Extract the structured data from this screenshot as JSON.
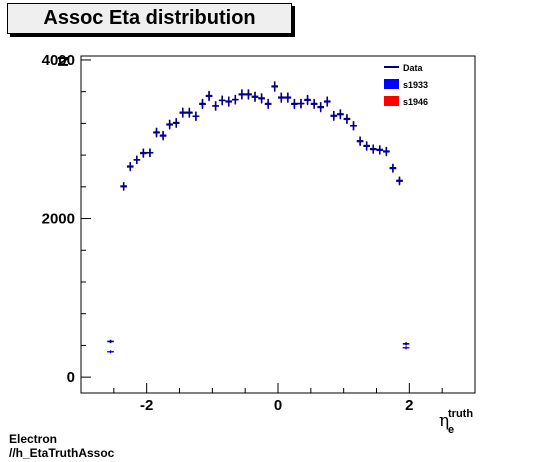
{
  "title": "Assoc Eta distribution",
  "footer": {
    "line1": "Electron",
    "line2": "//h_EtaTruthAssoc"
  },
  "colors": {
    "data": "#000080",
    "s1933": "#0000ff",
    "s1946": "#ff0000",
    "frame": "#000000"
  },
  "chart_data": {
    "type": "scatter",
    "title": "Assoc Eta distribution",
    "xlabel_main": "η",
    "xlabel_sup": "truth",
    "xlabel_sub": "e",
    "ylabel": "N",
    "xlim": [
      -3.0,
      3.0
    ],
    "ylim": [
      -200,
      4050
    ],
    "xticks": [
      -2,
      0,
      2
    ],
    "xtick_labels": [
      "-2",
      "0",
      "2"
    ],
    "yticks": [
      0,
      2000,
      4000
    ],
    "ytick_labels": [
      "0",
      "2000",
      "4000"
    ],
    "legend": {
      "position": "top-right",
      "entries": [
        {
          "name": "Data",
          "style": "line"
        },
        {
          "name": "s1933",
          "style": "box"
        },
        {
          "name": "s1946",
          "style": "box"
        }
      ]
    },
    "series": [
      {
        "name": "Data",
        "bin_width": 0.1,
        "x": [
          -2.55,
          -2.45,
          -2.35,
          -2.25,
          -2.15,
          -2.05,
          -1.95,
          -1.85,
          -1.75,
          -1.65,
          -1.55,
          -1.45,
          -1.35,
          -1.25,
          -1.15,
          -1.05,
          -0.95,
          -0.85,
          -0.75,
          -0.65,
          -0.55,
          -0.45,
          -0.35,
          -0.25,
          -0.15,
          -0.05,
          0.05,
          0.15,
          0.25,
          0.35,
          0.45,
          0.55,
          0.65,
          0.75,
          0.85,
          0.95,
          1.05,
          1.15,
          1.25,
          1.35,
          1.45,
          1.55,
          1.65,
          1.75,
          1.85,
          1.95,
          2.05,
          2.15,
          2.25,
          2.35,
          2.45,
          2.55
        ],
        "y": [
          450,
          0,
          2410,
          2660,
          2740,
          2830,
          2830,
          3090,
          3050,
          3190,
          3210,
          3340,
          3340,
          3290,
          3450,
          3550,
          3420,
          3490,
          3480,
          3500,
          3570,
          3570,
          3540,
          3520,
          3450,
          3670,
          3530,
          3530,
          3450,
          3450,
          3500,
          3450,
          3410,
          3480,
          3300,
          3320,
          3260,
          3170,
          2980,
          2920,
          2880,
          2870,
          2850,
          2640,
          2480,
          420,
          0,
          0,
          0,
          0,
          0,
          0
        ]
      },
      {
        "name": "s1933",
        "bin_width": 0.1,
        "x": [
          -2.55,
          -2.45,
          -2.35,
          -2.25,
          -2.15,
          -2.05,
          -1.95,
          -1.85,
          -1.75,
          -1.65,
          -1.55,
          -1.45,
          -1.35,
          -1.25,
          -1.15,
          -1.05,
          -0.95,
          -0.85,
          -0.75,
          -0.65,
          -0.55,
          -0.45,
          -0.35,
          -0.25,
          -0.15,
          -0.05,
          0.05,
          0.15,
          0.25,
          0.35,
          0.45,
          0.55,
          0.65,
          0.75,
          0.85,
          0.95,
          1.05,
          1.15,
          1.25,
          1.35,
          1.45,
          1.55,
          1.65,
          1.75,
          1.85,
          1.95,
          2.05,
          2.15,
          2.25,
          2.35,
          2.45,
          2.55
        ],
        "y": [
          320,
          0,
          2400,
          2650,
          2740,
          2820,
          2830,
          3080,
          3040,
          3180,
          3200,
          3330,
          3330,
          3290,
          3440,
          3540,
          3420,
          3490,
          3470,
          3500,
          3560,
          3560,
          3530,
          3510,
          3440,
          3660,
          3520,
          3520,
          3440,
          3450,
          3490,
          3440,
          3400,
          3470,
          3290,
          3310,
          3250,
          3170,
          2970,
          2910,
          2870,
          2860,
          2840,
          2630,
          2470,
          370,
          0,
          0,
          0,
          0,
          0,
          0
        ]
      },
      {
        "name": "s1946",
        "bin_width": 0.1,
        "x": [
          -2.55,
          -2.45,
          -2.35,
          -2.25,
          -2.15,
          -2.05,
          -1.95,
          -1.85,
          -1.75,
          -1.65,
          -1.55,
          -1.45,
          -1.35,
          -1.25,
          -1.15,
          -1.05,
          -0.95,
          -0.85,
          -0.75,
          -0.65,
          -0.55,
          -0.45,
          -0.35,
          -0.25,
          -0.15,
          -0.05,
          0.05,
          0.15,
          0.25,
          0.35,
          0.45,
          0.55,
          0.65,
          0.75,
          0.85,
          0.95,
          1.05,
          1.15,
          1.25,
          1.35,
          1.45,
          1.55,
          1.65,
          1.75,
          1.85,
          1.95,
          2.05,
          2.15,
          2.25,
          2.35,
          2.45,
          2.55
        ],
        "y": [
          320,
          0,
          2400,
          2650,
          2740,
          2820,
          2830,
          3080,
          3040,
          3180,
          3200,
          3330,
          3330,
          3290,
          3440,
          3540,
          3420,
          3490,
          3470,
          3500,
          3560,
          3560,
          3530,
          3510,
          3440,
          3660,
          3520,
          3520,
          3440,
          3450,
          3490,
          3440,
          3400,
          3470,
          3290,
          3310,
          3250,
          3170,
          2970,
          2910,
          2870,
          2860,
          2840,
          2630,
          2470,
          370,
          0,
          0,
          0,
          0,
          0,
          0
        ]
      }
    ]
  }
}
